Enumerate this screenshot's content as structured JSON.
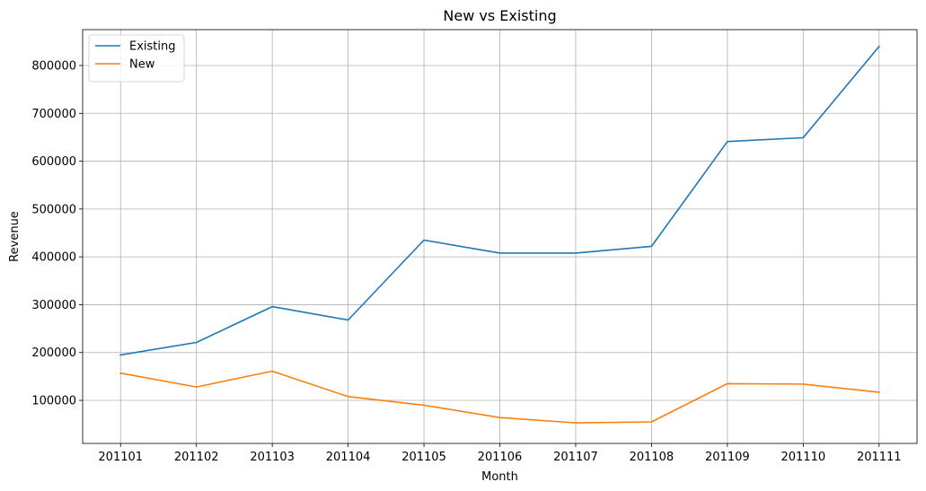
{
  "chart_data": {
    "type": "line",
    "title": "New vs Existing",
    "xlabel": "Month",
    "ylabel": "Revenue",
    "categories": [
      "201101",
      "201102",
      "201103",
      "201104",
      "201105",
      "201106",
      "201107",
      "201108",
      "201109",
      "201110",
      "201111"
    ],
    "ylim": [
      10000,
      875000
    ],
    "yticks": [
      100000,
      200000,
      300000,
      400000,
      500000,
      600000,
      700000,
      800000
    ],
    "ytick_labels": [
      "100000",
      "200000",
      "300000",
      "400000",
      "500000",
      "600000",
      "700000",
      "800000"
    ],
    "grid": true,
    "legend_position": "upper-left",
    "series": [
      {
        "name": "Existing",
        "color": "#1f77b4",
        "values": [
          195000,
          221000,
          296000,
          268000,
          435000,
          408000,
          408000,
          422000,
          641000,
          649000,
          840000
        ]
      },
      {
        "name": "New",
        "color": "#ff7f0e",
        "values": [
          157000,
          128000,
          161000,
          108000,
          90000,
          64000,
          53000,
          55000,
          135000,
          134000,
          117000
        ]
      }
    ]
  }
}
